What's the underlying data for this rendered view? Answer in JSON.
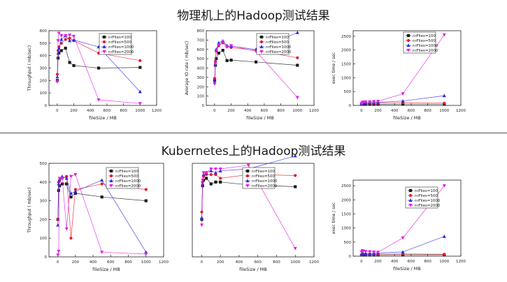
{
  "titles": {
    "top": "物理机上的Hadoop测试结果",
    "bottom": "Kubernetes上的Hadoop测试结果"
  },
  "colors": {
    "nrFiles=100": "#1a1a1a",
    "nrFiles=500": "#e8192c",
    "nrFiles=1000": "#2a2ae0",
    "nrFiles=2000": "#e020e0"
  },
  "markers": {
    "nrFiles=100": "square",
    "nrFiles=500": "circle",
    "nrFiles=1000": "triangle-up",
    "nrFiles=2000": "triangle-down"
  },
  "chart_data": [
    {
      "type": "line",
      "xlabel": "fileSize / MB",
      "ylabel": "Throughput ( mb/sec)",
      "xlim": [
        -100,
        1200
      ],
      "ylim": [
        0,
        600
      ],
      "xticks": [
        0,
        200,
        400,
        600,
        800,
        1000,
        1200
      ],
      "yticks": [
        0,
        100,
        200,
        300,
        400,
        500,
        600
      ],
      "legend": "top-right",
      "series": [
        {
          "name": "nrFiles=100",
          "x": [
            1,
            10,
            20,
            50,
            100,
            150,
            200,
            500,
            1000
          ],
          "y": [
            200,
            380,
            420,
            440,
            460,
            345,
            320,
            300,
            305
          ]
        },
        {
          "name": "nrFiles=500",
          "x": [
            1,
            10,
            20,
            50,
            100,
            150,
            200,
            500,
            1000
          ],
          "y": [
            250,
            440,
            470,
            500,
            530,
            540,
            520,
            420,
            360
          ]
        },
        {
          "name": "nrFiles=1000",
          "x": [
            1,
            10,
            20,
            50,
            100,
            150,
            200,
            500,
            1000
          ],
          "y": [
            230,
            420,
            460,
            530,
            560,
            520,
            525,
            470,
            110
          ]
        },
        {
          "name": "nrFiles=2000",
          "x": [
            1,
            10,
            20,
            50,
            100,
            150,
            200,
            500,
            1000
          ],
          "y": [
            190,
            520,
            580,
            560,
            560,
            565,
            555,
            45,
            15
          ]
        }
      ]
    },
    {
      "type": "line",
      "xlabel": "fileSize / MB",
      "ylabel": "Average IO rate ( mb/sec)",
      "xlim": [
        -100,
        1200
      ],
      "ylim": [
        0,
        800
      ],
      "xticks": [
        0,
        200,
        400,
        600,
        800,
        1000,
        1200
      ],
      "yticks": [
        0,
        100,
        200,
        300,
        400,
        500,
        600,
        700,
        800
      ],
      "legend": "top-right",
      "series": [
        {
          "name": "nrFiles=100",
          "x": [
            1,
            10,
            20,
            50,
            100,
            150,
            200,
            500,
            1000
          ],
          "y": [
            270,
            430,
            500,
            560,
            590,
            480,
            485,
            465,
            430
          ]
        },
        {
          "name": "nrFiles=500",
          "x": [
            1,
            10,
            20,
            50,
            100,
            150,
            200,
            500,
            1000
          ],
          "y": [
            290,
            470,
            580,
            640,
            670,
            630,
            620,
            590,
            510
          ]
        },
        {
          "name": "nrFiles=1000",
          "x": [
            1,
            10,
            20,
            50,
            100,
            150,
            200,
            500,
            1000
          ],
          "y": [
            250,
            440,
            600,
            670,
            690,
            640,
            635,
            600,
            780
          ]
        },
        {
          "name": "nrFiles=2000",
          "x": [
            1,
            10,
            20,
            50,
            100,
            150,
            200,
            500,
            1000
          ],
          "y": [
            230,
            450,
            590,
            650,
            680,
            625,
            640,
            580,
            85
          ]
        }
      ]
    },
    {
      "type": "line",
      "xlabel": "fileSize / MB",
      "ylabel": "exec time / sec",
      "xlim": [
        -100,
        1200
      ],
      "ylim": [
        0,
        2700
      ],
      "xticks": [
        0,
        200,
        400,
        600,
        800,
        1000,
        1200
      ],
      "yticks": [
        0,
        500,
        1000,
        1500,
        2000,
        2500
      ],
      "legend": "top-right",
      "series": [
        {
          "name": "nrFiles=100",
          "x": [
            1,
            10,
            20,
            50,
            100,
            150,
            200,
            500,
            1000
          ],
          "y": [
            40,
            40,
            40,
            40,
            40,
            40,
            40,
            45,
            45
          ]
        },
        {
          "name": "nrFiles=500",
          "x": [
            1,
            10,
            20,
            50,
            100,
            150,
            200,
            500,
            1000
          ],
          "y": [
            50,
            60,
            70,
            80,
            80,
            80,
            80,
            100,
            80
          ]
        },
        {
          "name": "nrFiles=1000",
          "x": [
            1,
            10,
            20,
            50,
            100,
            150,
            200,
            500,
            1000
          ],
          "y": [
            60,
            70,
            80,
            90,
            100,
            100,
            110,
            160,
            350
          ]
        },
        {
          "name": "nrFiles=2000",
          "x": [
            1,
            10,
            20,
            50,
            100,
            150,
            200,
            500,
            1000
          ],
          "y": [
            70,
            90,
            120,
            130,
            130,
            140,
            150,
            420,
            2550
          ]
        }
      ]
    },
    {
      "type": "line",
      "xlabel": "fileSize / MB",
      "ylabel": "Throughput ( mb/sec)",
      "xlim": [
        -100,
        1200
      ],
      "ylim": [
        0,
        500
      ],
      "xticks": [
        0,
        200,
        400,
        600,
        800,
        1000,
        1200
      ],
      "yticks": [
        0,
        100,
        200,
        300,
        400,
        500
      ],
      "legend": "top-right",
      "series": [
        {
          "name": "nrFiles=100",
          "x": [
            1,
            10,
            20,
            50,
            100,
            150,
            200,
            500,
            1000
          ],
          "y": [
            200,
            355,
            380,
            390,
            390,
            320,
            340,
            320,
            300
          ]
        },
        {
          "name": "nrFiles=500",
          "x": [
            1,
            10,
            20,
            50,
            100,
            150,
            200,
            500,
            1000
          ],
          "y": [
            200,
            400,
            410,
            420,
            430,
            100,
            360,
            390,
            360
          ]
        },
        {
          "name": "nrFiles=1000",
          "x": [
            1,
            10,
            20,
            50,
            100,
            150,
            200,
            500,
            1000
          ],
          "y": [
            170,
            390,
            410,
            430,
            420,
            340,
            350,
            410,
            25
          ]
        },
        {
          "name": "nrFiles=2000",
          "x": [
            1,
            10,
            20,
            50,
            100,
            150,
            200,
            500,
            1000
          ],
          "y": [
            10,
            30,
            420,
            420,
            150,
            430,
            440,
            25,
            15
          ]
        }
      ]
    },
    {
      "type": "line",
      "xlabel": "fileSize / MB",
      "ylabel": "",
      "xlim": [
        -100,
        1200
      ],
      "ylim": [
        0,
        500
      ],
      "xticks": [
        0,
        200,
        400,
        600,
        800,
        1000,
        1200
      ],
      "yticks": [],
      "legend": "top-right",
      "series": [
        {
          "name": "nrFiles=100",
          "x": [
            1,
            10,
            20,
            50,
            100,
            150,
            200,
            500,
            1000
          ],
          "y": [
            200,
            380,
            410,
            420,
            390,
            400,
            400,
            385,
            375
          ]
        },
        {
          "name": "nrFiles=500",
          "x": [
            1,
            10,
            20,
            50,
            100,
            150,
            200,
            500,
            1000
          ],
          "y": [
            240,
            400,
            430,
            440,
            440,
            440,
            420,
            440,
            435
          ]
        },
        {
          "name": "nrFiles=1000",
          "x": [
            1,
            10,
            20,
            50,
            100,
            150,
            200,
            500,
            1000
          ],
          "y": [
            210,
            390,
            440,
            450,
            460,
            450,
            460,
            470,
            540
          ]
        },
        {
          "name": "nrFiles=2000",
          "x": [
            1,
            10,
            20,
            50,
            100,
            150,
            200,
            500,
            1000
          ],
          "y": [
            170,
            410,
            450,
            450,
            470,
            470,
            470,
            490,
            45
          ]
        }
      ]
    },
    {
      "type": "line",
      "xlabel": "fileSize / MB",
      "ylabel": "exec time / sec",
      "xlim": [
        -100,
        1200
      ],
      "ylim": [
        0,
        2700
      ],
      "xticks": [
        0,
        200,
        400,
        600,
        800,
        1000,
        1200
      ],
      "yticks": [
        0,
        500,
        1000,
        1500,
        2000,
        2500
      ],
      "legend": "top-right",
      "series": [
        {
          "name": "nrFiles=100",
          "x": [
            1,
            10,
            20,
            50,
            100,
            150,
            200,
            500,
            1000
          ],
          "y": [
            40,
            40,
            40,
            45,
            45,
            45,
            45,
            50,
            50
          ]
        },
        {
          "name": "nrFiles=500",
          "x": [
            1,
            10,
            20,
            50,
            100,
            150,
            200,
            500,
            1000
          ],
          "y": [
            50,
            60,
            70,
            70,
            70,
            70,
            70,
            80,
            70
          ]
        },
        {
          "name": "nrFiles=1000",
          "x": [
            1,
            10,
            20,
            50,
            100,
            150,
            200,
            500,
            1000
          ],
          "y": [
            60,
            80,
            90,
            100,
            100,
            100,
            110,
            150,
            700
          ]
        },
        {
          "name": "nrFiles=2000",
          "x": [
            1,
            10,
            20,
            50,
            100,
            150,
            200,
            500,
            1000
          ],
          "y": [
            150,
            200,
            180,
            170,
            160,
            150,
            140,
            650,
            2500
          ]
        }
      ]
    }
  ]
}
